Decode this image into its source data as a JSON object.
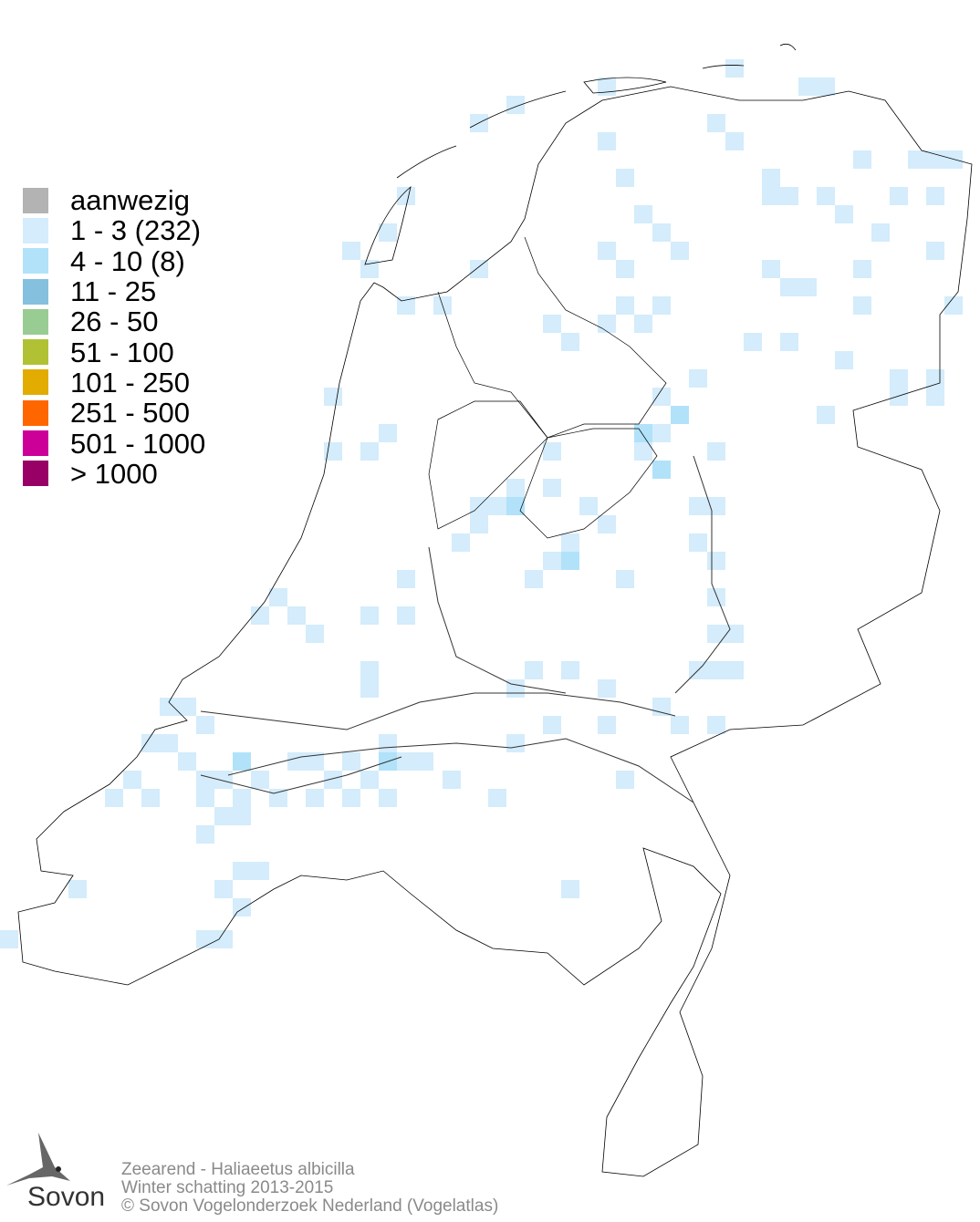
{
  "legend": {
    "items": [
      {
        "label": "aanwezig",
        "color": "#b3b3b3"
      },
      {
        "label": "1 - 3 (232)",
        "color": "#d4ecfb"
      },
      {
        "label": "4 - 10 (8)",
        "color": "#b1e2fa"
      },
      {
        "label": "11 - 25",
        "color": "#86c0df"
      },
      {
        "label": "26 - 50",
        "color": "#99cc93"
      },
      {
        "label": "51 - 100",
        "color": "#b0c234"
      },
      {
        "label": "101 - 250",
        "color": "#e2ac00"
      },
      {
        "label": "251 - 500",
        "color": "#ff6600"
      },
      {
        "label": "501 - 1000",
        "color": "#cc0099"
      },
      {
        "label": "> 1000",
        "color": "#990066"
      }
    ]
  },
  "footer": {
    "species": "Zeearend - Haliaeetus albicilla",
    "season": "Winter schatting 2013-2015",
    "copyright": "© Sovon Vogelonderzoek Nederland (Vogelatlas)"
  },
  "logo": {
    "text": "Sovon",
    "icon": "swallow-icon"
  }
}
